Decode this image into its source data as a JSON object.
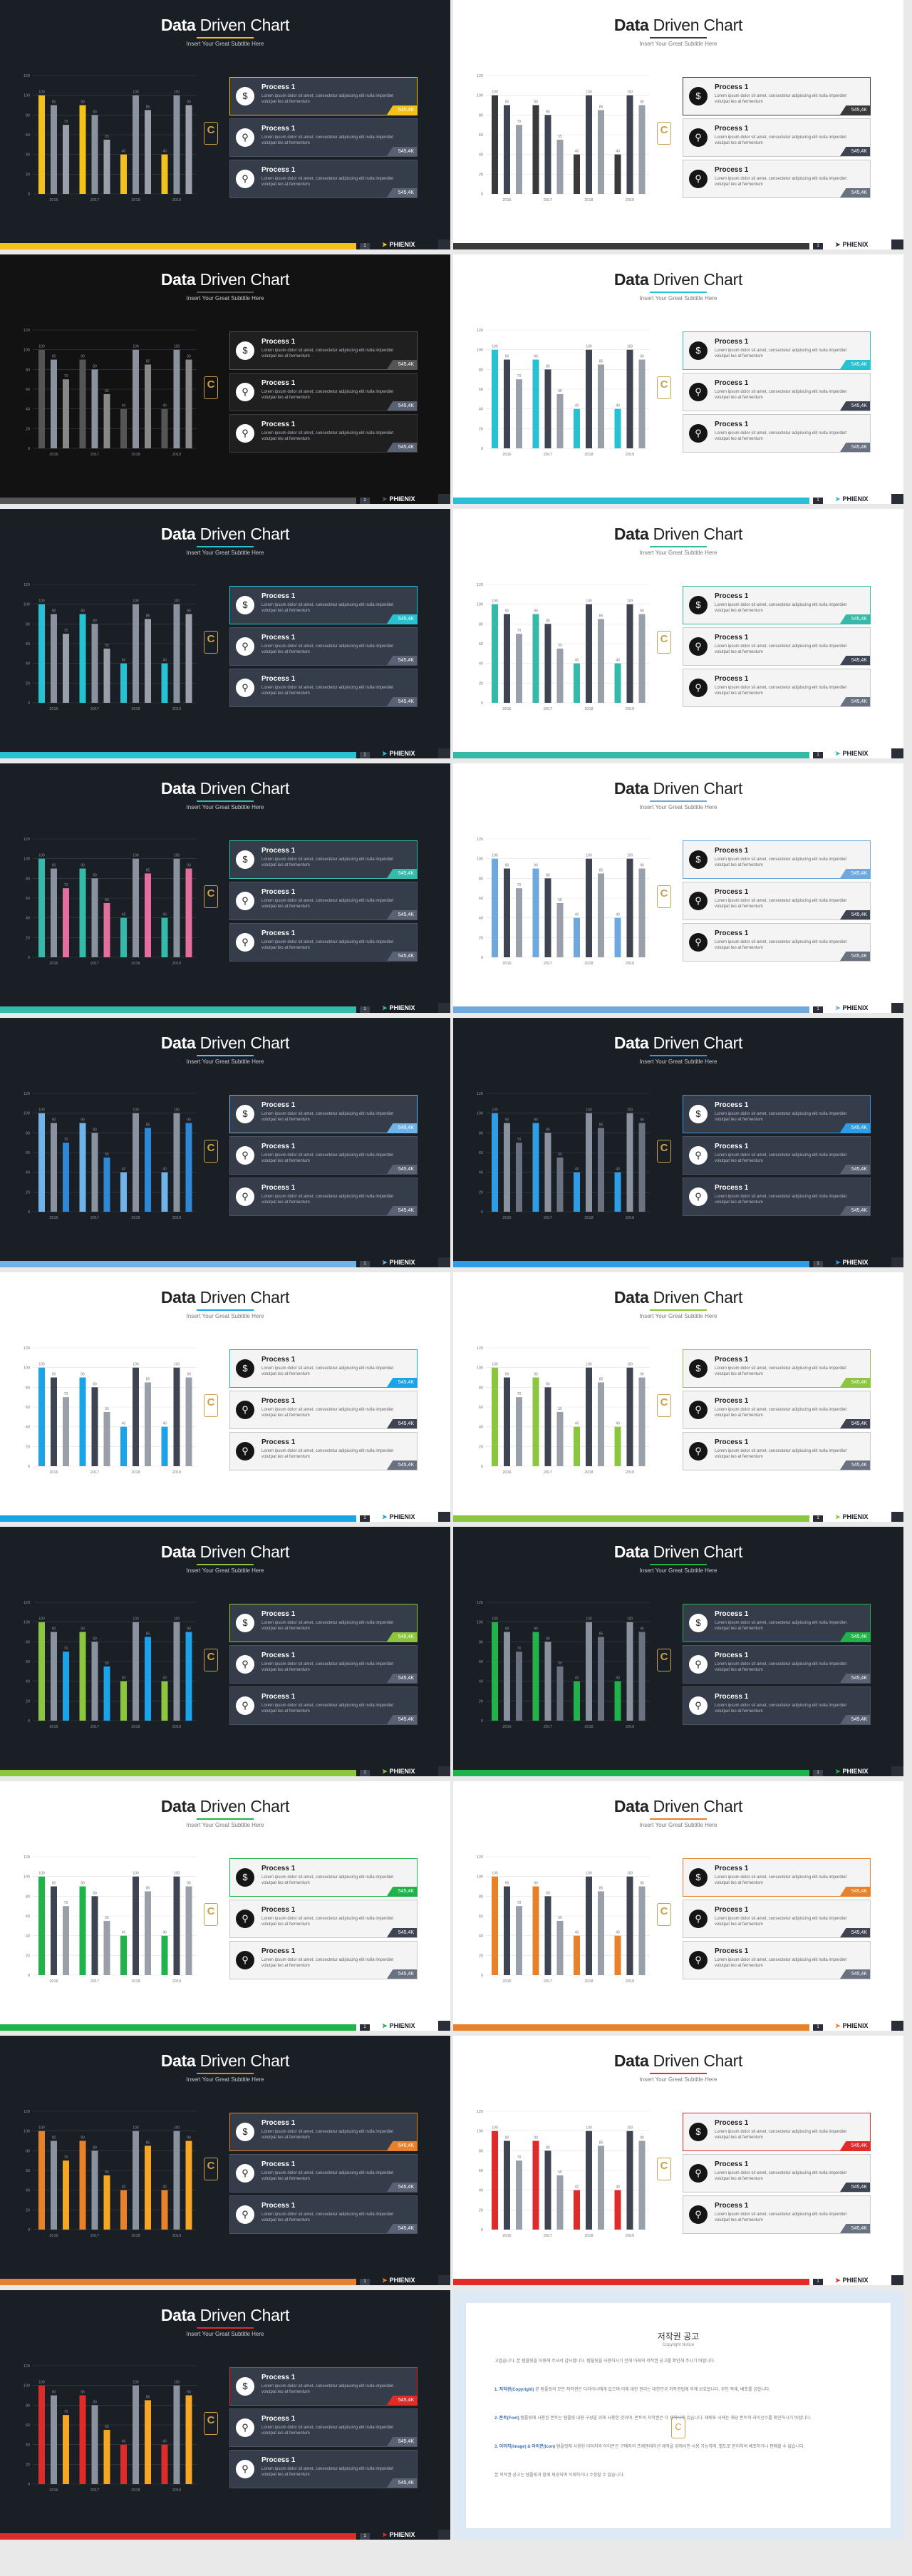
{
  "slide_common": {
    "title_bold": "Data",
    "title_rest": "Driven Chart",
    "subtitle": "Insert Your Great Subtitle Here",
    "badge_letter": "C",
    "badge_small": "",
    "logo": "PHIENIX",
    "logo_icon": "bird-icon",
    "page_number": "1"
  },
  "processes": [
    {
      "title": "Process 1",
      "text": "Lorem ipsum dolor sit amet, consectetur adipiscing elit nulla imperdiet volutpat leo at fermentum",
      "value": "545,4K",
      "icon": "money-icon",
      "glyph": "$"
    },
    {
      "title": "Process 1",
      "text": "Lorem ipsum dolor sit amet, consectetur adipiscing elit nulla imperdiet volutpat leo at fermentum",
      "value": "545,4K",
      "icon": "location-pin-icon",
      "glyph": "⚲"
    },
    {
      "title": "Process 1",
      "text": "Lorem ipsum dolor sit amet, consectetur adipiscing elit nulla imperdiet volutpat leo at fermentum",
      "value": "545,4K",
      "icon": "location-pin-icon",
      "glyph": "⚲"
    }
  ],
  "slides": [
    {
      "theme": "dark",
      "accent": "#f2c21b",
      "bar2": "#9aa0aa",
      "bar3": "#f2c21b"
    },
    {
      "theme": "light",
      "accent": "#3a3a3a",
      "bar2": "#999999",
      "bar3": "#3a3a3a"
    },
    {
      "theme": "black",
      "accent": "#555555",
      "bar2": "#888888",
      "bar3": "#555555"
    },
    {
      "theme": "light",
      "accent": "#27c1d4",
      "bar2": "#9aa0aa",
      "bar3": "#27c1d4"
    },
    {
      "theme": "dark",
      "accent": "#27c1d4",
      "bar2": "#9aa0aa",
      "bar3": "#27c1d4"
    },
    {
      "theme": "light",
      "accent": "#35b9a9",
      "bar2": "#9aa0aa",
      "bar3": "#35b9a9"
    },
    {
      "theme": "dark",
      "accent": "#35b9a9",
      "bar2": "#e26fa0",
      "bar3": "#35b9a9"
    },
    {
      "theme": "light",
      "accent": "#6fa8dc",
      "bar2": "#9aa0aa",
      "bar3": "#6fa8dc"
    },
    {
      "theme": "dark",
      "accent": "#6fb3e8",
      "bar2": "#2f88d6",
      "bar3": "#6fb3e8"
    },
    {
      "theme": "dark",
      "accent": "#2d9ee6",
      "bar2": "#6a7180",
      "bar3": "#2d9ee6"
    },
    {
      "theme": "light",
      "accent": "#1aa3e8",
      "bar2": "#9aa0aa",
      "bar3": "#1aa3e8"
    },
    {
      "theme": "light",
      "accent": "#8cc63f",
      "bar2": "#9aa0aa",
      "bar3": "#8cc63f"
    },
    {
      "theme": "dark",
      "accent": "#8cc63f",
      "bar2": "#1aa3e8",
      "bar3": "#8cc63f"
    },
    {
      "theme": "dark",
      "accent": "#1fb34a",
      "bar2": "#6a7180",
      "bar3": "#1fb34a"
    },
    {
      "theme": "light",
      "accent": "#1fb34a",
      "bar2": "#9aa0aa",
      "bar3": "#1fb34a"
    },
    {
      "theme": "light",
      "accent": "#e8822a",
      "bar2": "#9aa0aa",
      "bar3": "#e8822a"
    },
    {
      "theme": "dark",
      "accent": "#e8822a",
      "bar2": "#f5a623",
      "bar3": "#e8822a"
    },
    {
      "theme": "light",
      "accent": "#e02b2b",
      "bar2": "#9aa0aa",
      "bar3": "#e02b2b"
    },
    {
      "theme": "dark",
      "accent": "#e02b2b",
      "bar2": "#f5a623",
      "bar3": "#e02b2b"
    }
  ],
  "chart_data": {
    "type": "bar",
    "categories": [
      "2016",
      "2017",
      "2018",
      "2019"
    ],
    "series": [
      {
        "values": [
          100,
          90,
          40,
          40
        ]
      },
      {
        "values": [
          90,
          80,
          100,
          100
        ]
      },
      {
        "values": [
          70,
          55,
          85,
          90
        ]
      }
    ],
    "data_labels": [
      [
        "100",
        "90",
        "40",
        "40"
      ],
      [
        "90",
        "80",
        "100",
        "100"
      ],
      [
        "70",
        "55",
        "85",
        "90"
      ]
    ],
    "ylim": [
      0,
      120
    ],
    "yticks": [
      "0",
      "20",
      "40",
      "60",
      "80",
      "100",
      "120"
    ],
    "grid": true
  },
  "notice": {
    "title": "저작권 공고",
    "subtitle": "Copyright Notice",
    "paragraphs": [
      {
        "head": "",
        "text": "고맙습니다. 본 템플릿을 이용해 주셔서 감사합니다. 템플릿을 사용하시기 전에 아래의 저작권 공고를 확인해 주시기 바랍니다."
      },
      {
        "head": "1. 저작권(Copyright)",
        "text": "본 템플릿의 모든 저작권은 디자이너에게 있으며 이에 대한 권리는 대한민국 저작권법에 의해 보호됩니다. 무단 복제, 배포를 금합니다."
      },
      {
        "head": "2. 폰트(Font)",
        "text": "템플릿에 사용된 폰트는 템플릿 내용 구성을 위해 사용한 것이며, 폰트의 저작권은 각 제작사에 있습니다. 재배포 시에는 해당 폰트의 라이선스를 확인하시기 바랍니다."
      },
      {
        "head": "3. 이미지(Image) & 아이콘(Icon)",
        "text": "템플릿에 사용된 이미지와 아이콘은 구매자의 프레젠테이션 제작을 위해서만 사용 가능하며, 별도로 분리하여 배포하거나 판매할 수 없습니다."
      },
      {
        "head": "",
        "text": "본 저작권 공고는 템플릿과 함께 제공되며 삭제하거나 수정할 수 없습니다."
      }
    ]
  }
}
